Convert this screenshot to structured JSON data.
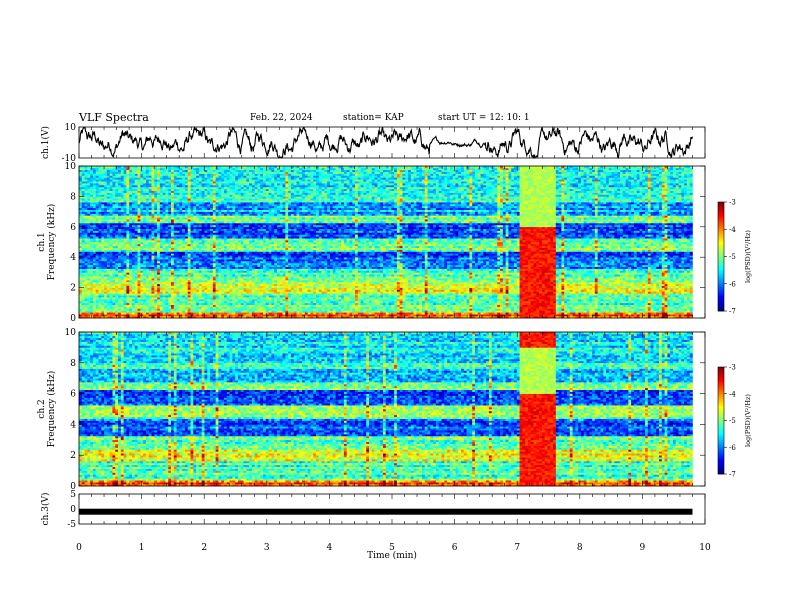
{
  "header": {
    "title": "VLF Spectra",
    "date": "Feb. 22, 2024",
    "station": "station= KAP",
    "start": "start  UT =   12: 10: 1"
  },
  "chart_data": [
    {
      "type": "line",
      "panel": "ch1-waveform",
      "ylabel": "ch.1(V)",
      "ylim": [
        -10,
        10
      ],
      "yticks": [
        "10",
        "-10"
      ],
      "xlim": [
        0,
        10
      ],
      "series": [
        {
          "description_values_range": [
            -10,
            10
          ],
          "x_range_min": [
            0,
            9.8
          ]
        }
      ]
    },
    {
      "type": "heatmap",
      "panel": "ch1-spectrogram",
      "ylabel": "Frequency (kHz)",
      "channel_label": "ch.1",
      "ylim": [
        0,
        10
      ],
      "yticks": [
        "0",
        "2",
        "4",
        "6",
        "8",
        "10"
      ],
      "xlim": [
        0,
        10
      ],
      "data_x_range": [
        0,
        9.8
      ],
      "colorbar": {
        "label": "log(PSD)(V²/Hz)",
        "range": [
          -7,
          -3
        ],
        "ticks": [
          "-3",
          "-4",
          "-5",
          "-6",
          "-7"
        ]
      },
      "bright_interval_min": [
        7.05,
        7.6
      ]
    },
    {
      "type": "heatmap",
      "panel": "ch2-spectrogram",
      "ylabel": "Frequency (kHz)",
      "channel_label": "ch.2",
      "ylim": [
        0,
        10
      ],
      "yticks": [
        "0",
        "2",
        "4",
        "6",
        "8",
        "10"
      ],
      "xlim": [
        0,
        10
      ],
      "data_x_range": [
        0,
        9.8
      ],
      "colorbar": {
        "label": "log(PSD)(V²/Hz)",
        "range": [
          -7,
          -3
        ],
        "ticks": [
          "-3",
          "-4",
          "-5",
          "-6",
          "-7"
        ]
      },
      "bright_interval_min": [
        7.05,
        7.6
      ]
    },
    {
      "type": "line",
      "panel": "ch3-waveform",
      "ylabel": "ch.3(V)",
      "ylim": [
        -5,
        5
      ],
      "yticks": [
        "5",
        "0",
        "-5"
      ],
      "xlim": [
        0,
        10
      ],
      "series": [
        {
          "constant_value": -0.9,
          "x_range_min": [
            0,
            9.8
          ]
        }
      ]
    }
  ],
  "xaxis": {
    "label": "Time  (min)",
    "ticks": [
      "0",
      "1",
      "2",
      "3",
      "4",
      "5",
      "6",
      "7",
      "8",
      "9",
      "10"
    ]
  },
  "colors": {
    "line": "#000000",
    "colormap": [
      "#00007f",
      "#0000ff",
      "#00ffff",
      "#00ff00",
      "#ffff00",
      "#ff8000",
      "#ff0000",
      "#ff7f7f",
      "#ffffff"
    ]
  }
}
